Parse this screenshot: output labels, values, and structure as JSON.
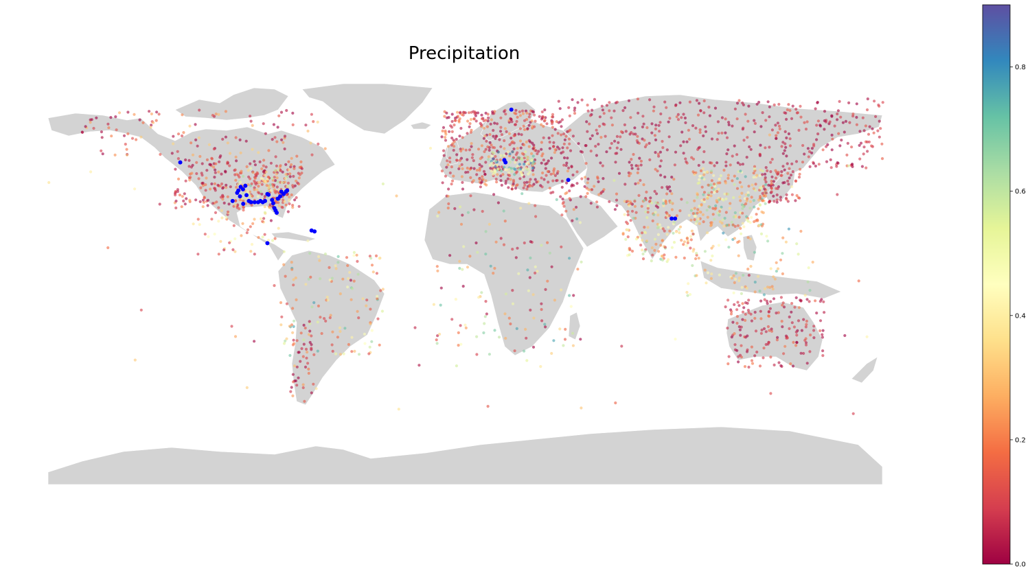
{
  "chart_data": {
    "type": "scatter",
    "title": "Precipitation",
    "projection": "plate-carree world map",
    "land_color": "#d3d3d3",
    "border_color": "#ffffff",
    "x": "longitude",
    "y": "latitude",
    "xlim": [
      -180,
      180
    ],
    "ylim": [
      -90,
      84
    ],
    "colorbar": {
      "colormap": "Spectral",
      "range": [
        0,
        0.9
      ],
      "ticks": [
        0.0,
        0.2,
        0.4,
        0.6,
        0.8
      ],
      "tick_labels": [
        "0.0",
        "0.2",
        "0.4",
        "0.6",
        "0.8"
      ],
      "stops": [
        "#9e0142",
        "#d53e4f",
        "#f46d43",
        "#fdae61",
        "#fee08b",
        "#ffffbf",
        "#e6f598",
        "#abdda4",
        "#66c2a5",
        "#3288bd",
        "#5e4fa2"
      ]
    },
    "clusters": [
      {
        "lon": [
          -125,
          -70
        ],
        "lat": [
          28,
          50
        ],
        "n": 240,
        "v": [
          0.0,
          0.25
        ]
      },
      {
        "lon": [
          -98,
          -75
        ],
        "lat": [
          28,
          45
        ],
        "n": 110,
        "v": [
          0.1,
          0.7
        ]
      },
      {
        "lon": [
          -165,
          -60
        ],
        "lat": [
          50,
          70
        ],
        "n": 110,
        "v": [
          0.0,
          0.35
        ]
      },
      {
        "lon": [
          -115,
          -80
        ],
        "lat": [
          8,
          28
        ],
        "n": 50,
        "v": [
          0.05,
          0.55
        ]
      },
      {
        "lon": [
          -80,
          -35
        ],
        "lat": [
          -35,
          10
        ],
        "n": 120,
        "v": [
          0.1,
          0.8
        ]
      },
      {
        "lon": [
          -75,
          -65
        ],
        "lat": [
          -55,
          -20
        ],
        "n": 40,
        "v": [
          0.0,
          0.3
        ]
      },
      {
        "lon": [
          -10,
          40
        ],
        "lat": [
          36,
          70
        ],
        "n": 420,
        "v": [
          0.0,
          0.25
        ]
      },
      {
        "lon": [
          10,
          30
        ],
        "lat": [
          42,
          52
        ],
        "n": 80,
        "v": [
          0.4,
          0.85
        ]
      },
      {
        "lon": [
          -15,
          50
        ],
        "lat": [
          -35,
          35
        ],
        "n": 130,
        "v": [
          0.0,
          0.8
        ]
      },
      {
        "lon": [
          40,
          180
        ],
        "lat": [
          45,
          75
        ],
        "n": 420,
        "v": [
          0.0,
          0.15
        ]
      },
      {
        "lon": [
          40,
          90
        ],
        "lat": [
          25,
          45
        ],
        "n": 100,
        "v": [
          0.0,
          0.25
        ]
      },
      {
        "lon": [
          68,
          100
        ],
        "lat": [
          5,
          32
        ],
        "n": 150,
        "v": [
          0.1,
          0.7
        ]
      },
      {
        "lon": [
          98,
          130
        ],
        "lat": [
          20,
          45
        ],
        "n": 220,
        "v": [
          0.15,
          0.75
        ]
      },
      {
        "lon": [
          128,
          145
        ],
        "lat": [
          30,
          45
        ],
        "n": 70,
        "v": [
          0.0,
          0.2
        ]
      },
      {
        "lon": [
          95,
          150
        ],
        "lat": [
          -10,
          20
        ],
        "n": 80,
        "v": [
          0.2,
          0.8
        ]
      },
      {
        "lon": [
          112,
          155
        ],
        "lat": [
          -40,
          -10
        ],
        "n": 160,
        "v": [
          0.0,
          0.2
        ]
      },
      {
        "lon": [
          -180,
          180
        ],
        "lat": [
          -60,
          60
        ],
        "n": 70,
        "v": [
          0.0,
          0.6
        ]
      }
    ],
    "highlight_points": {
      "color": "#0000ff",
      "label": "",
      "points": [
        [
          -122.5,
          47.5
        ],
        [
          -97.5,
          35.5
        ],
        [
          -96.8,
          33
        ],
        [
          -95.4,
          29.8
        ],
        [
          -94,
          33.5
        ],
        [
          -93,
          31
        ],
        [
          -92,
          30.5
        ],
        [
          -90.5,
          30.5
        ],
        [
          -89,
          30.5
        ],
        [
          -88,
          31
        ],
        [
          -87,
          30.5
        ],
        [
          -86,
          31
        ],
        [
          -84.5,
          33.7
        ],
        [
          -82.5,
          30
        ],
        [
          -82,
          28
        ],
        [
          -81.5,
          27
        ],
        [
          -80.5,
          32
        ],
        [
          -79.5,
          33
        ],
        [
          -78,
          34
        ],
        [
          -77,
          35
        ],
        [
          -76.5,
          35.5
        ],
        [
          -95.5,
          36
        ],
        [
          -96.5,
          37
        ],
        [
          -94.5,
          37.5
        ],
        [
          -98,
          34.5
        ],
        [
          -100,
          31
        ],
        [
          -85,
          34
        ],
        [
          -83,
          31.5
        ],
        [
          -81,
          26
        ],
        [
          -79,
          35
        ],
        [
          -85,
          13
        ],
        [
          -66,
          18.4
        ],
        [
          -64.7,
          18
        ],
        [
          20,
          70
        ],
        [
          17,
          48.5
        ],
        [
          17.5,
          47.5
        ],
        [
          44.5,
          40
        ],
        [
          89,
          23.5
        ],
        [
          90.5,
          23.5
        ]
      ]
    }
  }
}
